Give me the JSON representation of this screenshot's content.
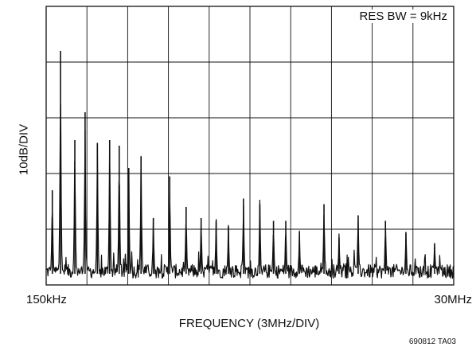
{
  "chart_data": {
    "type": "line",
    "title": "",
    "annotation": "RES BW = 9kHz",
    "ylabel": "10dB/DIV",
    "xlabel": "FREQUENCY (3MHz/DIV)",
    "x_tick_labels": [
      "150kHz",
      "30MHz"
    ],
    "xlim_mhz": [
      0.15,
      30
    ],
    "y_divisions": 5,
    "x_divisions": 10,
    "grid": true,
    "series": [
      {
        "color": "#111111",
        "peaks": [
          {
            "x_mhz": 0.6,
            "level_div": 1.7
          },
          {
            "x_mhz": 1.2,
            "level_div": 4.2
          },
          {
            "x_mhz": 2.25,
            "level_div": 2.6
          },
          {
            "x_mhz": 3.0,
            "level_div": 3.1
          },
          {
            "x_mhz": 3.9,
            "level_div": 2.55
          },
          {
            "x_mhz": 4.8,
            "level_div": 2.6
          },
          {
            "x_mhz": 5.5,
            "level_div": 2.5
          },
          {
            "x_mhz": 6.2,
            "level_div": 2.1
          },
          {
            "x_mhz": 7.1,
            "level_div": 2.3
          },
          {
            "x_mhz": 8.0,
            "level_div": 1.2
          },
          {
            "x_mhz": 9.2,
            "level_div": 1.95
          },
          {
            "x_mhz": 10.4,
            "level_div": 1.4
          },
          {
            "x_mhz": 11.5,
            "level_div": 1.2
          },
          {
            "x_mhz": 12.6,
            "level_div": 1.15
          },
          {
            "x_mhz": 13.5,
            "level_div": 1.05
          },
          {
            "x_mhz": 14.6,
            "level_div": 1.55
          },
          {
            "x_mhz": 15.8,
            "level_div": 1.45
          },
          {
            "x_mhz": 16.8,
            "level_div": 1.15
          },
          {
            "x_mhz": 17.7,
            "level_div": 1.15
          },
          {
            "x_mhz": 18.7,
            "level_div": 0.95
          },
          {
            "x_mhz": 20.5,
            "level_div": 1.45
          },
          {
            "x_mhz": 21.6,
            "level_div": 0.85
          },
          {
            "x_mhz": 23.0,
            "level_div": 1.25
          },
          {
            "x_mhz": 25.0,
            "level_div": 1.15
          },
          {
            "x_mhz": 26.5,
            "level_div": 0.95
          },
          {
            "x_mhz": 28.6,
            "level_div": 0.75
          }
        ]
      }
    ]
  },
  "figure_id": "690812 TA03"
}
